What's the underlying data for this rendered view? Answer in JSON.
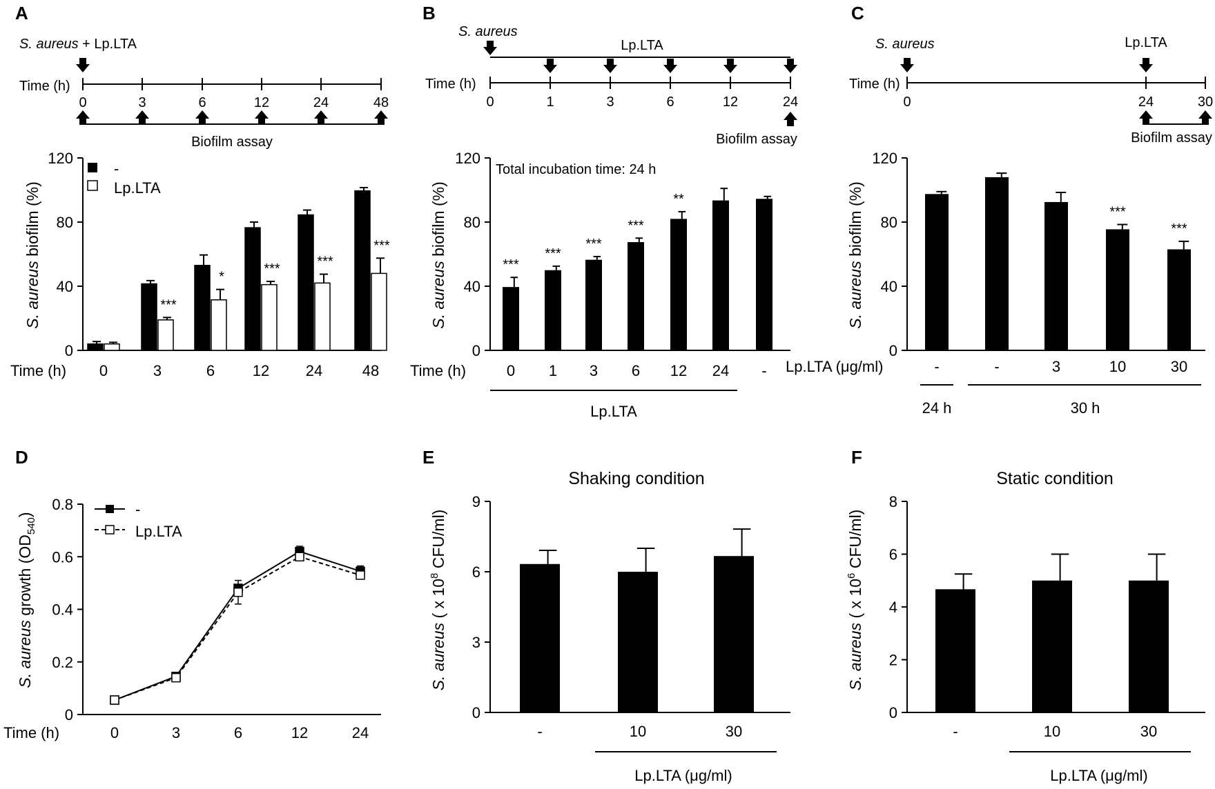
{
  "panels": {
    "A": {
      "label": "A",
      "timeline": {
        "top_label_italic": "S. aureus",
        "top_label_rest": " + Lp.LTA",
        "time_label": "Time (h)",
        "ticks": [
          "0",
          "3",
          "6",
          "12",
          "24",
          "48"
        ],
        "bottom_label": "Biofilm assay"
      },
      "ylabel_italic": "S. aureus",
      "ylabel_rest": " biofilm (%)"
    },
    "B": {
      "label": "B",
      "timeline": {
        "top_label_italic": "S. aureus",
        "lp_label": "Lp.LTA",
        "time_label": "Time (h)",
        "ticks": [
          "0",
          "1",
          "3",
          "6",
          "12",
          "24"
        ],
        "bottom_label": "Biofilm assay"
      },
      "annotation": "Total incubation time: 24 h",
      "group_label": "Lp.LTA",
      "ylabel_italic": "S. aureus",
      "ylabel_rest": " biofilm (%)"
    },
    "C": {
      "label": "C",
      "timeline": {
        "top_label_italic": "S. aureus",
        "lp_label": "Lp.LTA",
        "time_label": "Time (h)",
        "ticks": [
          "0",
          "24",
          "30"
        ],
        "bottom_label": "Biofilm assay"
      },
      "group_labels": [
        "24 h",
        "30 h"
      ],
      "ylabel_italic": "S. aureus",
      "ylabel_rest": " biofilm (%)"
    },
    "D": {
      "label": "D",
      "ylabel_italic": "S. aureus",
      "ylabel_rest": " growth (OD",
      "ylabel_sub": "540",
      "ylabel_end": ")"
    },
    "E": {
      "label": "E",
      "ylabel_italic": "S. aureus",
      "ylabel_rest": " ( x 10",
      "ylabel_sup": "8",
      "ylabel_end": " CFU/ml)",
      "group_label": "Lp.LTA (μg/ml)"
    },
    "F": {
      "label": "F",
      "ylabel_italic": "S. aureus",
      "ylabel_rest": " ( x 10",
      "ylabel_sup": "6",
      "ylabel_end": " CFU/ml)",
      "group_label": "Lp.LTA (μg/ml)"
    }
  },
  "chart_data": [
    {
      "panel": "A",
      "type": "bar",
      "xlabel": "Time (h)",
      "ylabel": "S. aureus biofilm (%)",
      "ylim": [
        0,
        120
      ],
      "yticks": [
        0,
        40,
        80,
        120
      ],
      "categories": [
        "0",
        "3",
        "6",
        "12",
        "24",
        "48"
      ],
      "series": [
        {
          "name": "-",
          "color": "#000000",
          "values": [
            4,
            41.5,
            53,
            76.5,
            84.5,
            99.5
          ],
          "errors": [
            1.5,
            2,
            6.5,
            3.5,
            3,
            2
          ]
        },
        {
          "name": "Lp.LTA",
          "color": "#ffffff",
          "values": [
            4,
            19,
            31.5,
            41,
            42,
            48
          ],
          "errors": [
            1,
            1.5,
            6.5,
            2,
            5.5,
            9.5
          ]
        }
      ],
      "significance": [
        "",
        "***",
        "*",
        "***",
        "***",
        "***"
      ]
    },
    {
      "panel": "B",
      "type": "bar",
      "xlabel": "Time (h)",
      "ylabel": "S. aureus biofilm (%)",
      "ylim": [
        0,
        120
      ],
      "yticks": [
        0,
        40,
        80,
        120
      ],
      "categories": [
        "0",
        "1",
        "3",
        "6",
        "12",
        "24",
        "-"
      ],
      "values": [
        39.5,
        50,
        56.5,
        67.5,
        82,
        93.5,
        94.5
      ],
      "errors": [
        6,
        2.5,
        2,
        2.5,
        4.5,
        7.5,
        1.5
      ],
      "significance": [
        "***",
        "***",
        "***",
        "***",
        "**",
        "",
        ""
      ]
    },
    {
      "panel": "C",
      "type": "bar",
      "xlabel": "Lp.LTA (μg/ml)",
      "ylabel": "S. aureus biofilm (%)",
      "ylim": [
        0,
        120
      ],
      "yticks": [
        0,
        40,
        80,
        120
      ],
      "categories": [
        "-",
        "-",
        "3",
        "10",
        "30"
      ],
      "values": [
        97.5,
        108,
        92.5,
        75.5,
        63
      ],
      "errors": [
        1.5,
        2.5,
        6,
        3,
        5
      ],
      "significance": [
        "",
        "",
        "",
        "***",
        "***"
      ]
    },
    {
      "panel": "D",
      "type": "line",
      "xlabel": "Time (h)",
      "ylabel": "S. aureus growth (OD540)",
      "ylim": [
        0,
        0.8
      ],
      "yticks": [
        "0",
        "0.2",
        "0.4",
        "0.6",
        "0.8"
      ],
      "categories": [
        "0",
        "3",
        "6",
        "12",
        "24"
      ],
      "series": [
        {
          "name": "-",
          "style": "solid",
          "marker": "filled-square",
          "values": [
            0.055,
            0.145,
            0.48,
            0.62,
            0.545
          ],
          "errors": [
            0.005,
            0.008,
            0.015,
            0.02,
            0.02
          ]
        },
        {
          "name": "Lp.LTA",
          "style": "dashed",
          "marker": "open-square",
          "values": [
            0.055,
            0.14,
            0.465,
            0.6,
            0.53
          ],
          "errors": [
            0.005,
            0.008,
            0.045,
            0.015,
            0.015
          ]
        }
      ]
    },
    {
      "panel": "E",
      "type": "bar",
      "title": "Shaking condition",
      "xlabel": "Lp.LTA (μg/ml)",
      "ylabel": "S. aureus ( x 10^8 CFU/ml)",
      "ylim": [
        0,
        9
      ],
      "yticks": [
        0,
        3,
        6,
        9
      ],
      "categories": [
        "-",
        "10",
        "30"
      ],
      "values": [
        6.33,
        6.0,
        6.67
      ],
      "errors": [
        0.58,
        1.0,
        1.15
      ]
    },
    {
      "panel": "F",
      "type": "bar",
      "title": "Static condition",
      "xlabel": "Lp.LTA (μg/ml)",
      "ylabel": "S. aureus ( x 10^6 CFU/ml)",
      "ylim": [
        0,
        8
      ],
      "yticks": [
        0,
        2,
        4,
        6,
        8
      ],
      "categories": [
        "-",
        "10",
        "30"
      ],
      "values": [
        4.67,
        5.0,
        5.0
      ],
      "errors": [
        0.58,
        1.0,
        1.0
      ]
    }
  ]
}
